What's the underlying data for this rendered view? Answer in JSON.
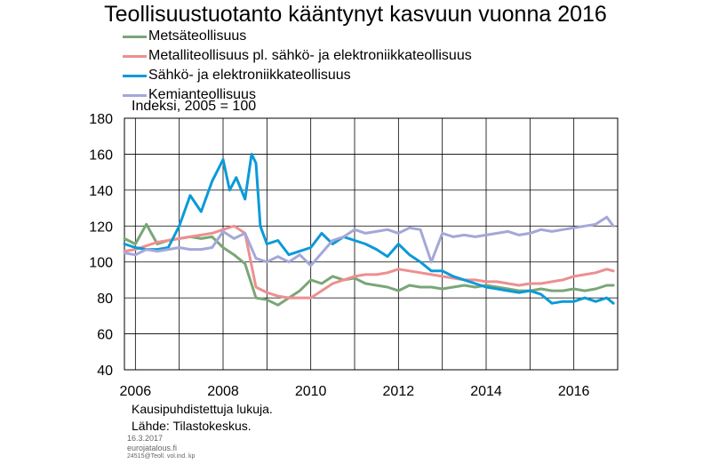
{
  "chart_data": {
    "type": "line",
    "title": "Teollisuustuotanto kääntynyt kasvuun vuonna 2016",
    "ylabel": "Indeksi, 2005 = 100",
    "ylim": [
      40,
      180
    ],
    "yticks": [
      "40",
      "60",
      "80",
      "100",
      "120",
      "140",
      "160",
      "180"
    ],
    "xlim": [
      2005.75,
      2017.0
    ],
    "xticks": [
      {
        "label": "2006",
        "value": 2006
      },
      {
        "label": "2008",
        "value": 2008
      },
      {
        "label": "2010",
        "value": 2010
      },
      {
        "label": "2012",
        "value": 2012
      },
      {
        "label": "2014",
        "value": 2014
      },
      {
        "label": "2016",
        "value": 2016
      }
    ],
    "gridlines_x": [
      2006,
      2007,
      2008,
      2009,
      2010,
      2011,
      2012,
      2013,
      2014,
      2015,
      2016
    ],
    "grid": true,
    "legend_position": "top-left",
    "series": [
      {
        "name": "Metsäteollisuus",
        "color": "#7aa677",
        "x": [
          2005.75,
          2006.0,
          2006.25,
          2006.5,
          2006.75,
          2007.0,
          2007.25,
          2007.5,
          2007.75,
          2008.0,
          2008.25,
          2008.5,
          2008.75,
          2009.0,
          2009.25,
          2009.5,
          2009.75,
          2010.0,
          2010.25,
          2010.5,
          2010.75,
          2011.0,
          2011.25,
          2011.5,
          2011.75,
          2012.0,
          2012.25,
          2012.5,
          2012.75,
          2013.0,
          2013.25,
          2013.5,
          2013.75,
          2014.0,
          2014.25,
          2014.5,
          2014.75,
          2015.0,
          2015.25,
          2015.5,
          2015.75,
          2016.0,
          2016.25,
          2016.5,
          2016.75,
          2016.9
        ],
        "y": [
          113,
          110,
          121,
          110,
          112,
          113,
          114,
          113,
          114,
          108,
          104,
          99,
          80,
          79,
          76,
          80,
          84,
          90,
          88,
          92,
          90,
          91,
          88,
          87,
          86,
          84,
          87,
          86,
          86,
          85,
          86,
          87,
          86,
          87,
          86,
          85,
          84,
          84,
          85,
          84,
          84,
          85,
          84,
          85,
          87,
          87
        ]
      },
      {
        "name": "Metalliteollisuus pl. sähkö- ja elektroniikkateollisuus",
        "color": "#ee8f8f",
        "x": [
          2005.75,
          2006.0,
          2006.25,
          2006.5,
          2006.75,
          2007.0,
          2007.25,
          2007.5,
          2007.75,
          2008.0,
          2008.25,
          2008.5,
          2008.75,
          2009.0,
          2009.25,
          2009.5,
          2009.75,
          2010.0,
          2010.25,
          2010.5,
          2010.75,
          2011.0,
          2011.25,
          2011.5,
          2011.75,
          2012.0,
          2012.25,
          2012.5,
          2012.75,
          2013.0,
          2013.25,
          2013.5,
          2013.75,
          2014.0,
          2014.25,
          2014.5,
          2014.75,
          2015.0,
          2015.25,
          2015.5,
          2015.75,
          2016.0,
          2016.25,
          2016.5,
          2016.75,
          2016.9
        ],
        "y": [
          106,
          107,
          109,
          111,
          112,
          113,
          114,
          115,
          116,
          118,
          120,
          116,
          86,
          83,
          81,
          80,
          80,
          80,
          84,
          88,
          90,
          92,
          93,
          93,
          94,
          96,
          95,
          94,
          93,
          92,
          91,
          90,
          90,
          89,
          89,
          88,
          87,
          88,
          88,
          89,
          90,
          92,
          93,
          94,
          96,
          95
        ]
      },
      {
        "name": "Sähkö- ja elektroniikkateollisuus",
        "color": "#0b9ad8",
        "x": [
          2005.75,
          2006.0,
          2006.25,
          2006.5,
          2006.75,
          2007.0,
          2007.25,
          2007.5,
          2007.75,
          2008.0,
          2008.15,
          2008.3,
          2008.5,
          2008.65,
          2008.75,
          2008.85,
          2009.0,
          2009.25,
          2009.5,
          2009.75,
          2010.0,
          2010.25,
          2010.5,
          2010.75,
          2011.0,
          2011.25,
          2011.5,
          2011.75,
          2012.0,
          2012.25,
          2012.5,
          2012.75,
          2013.0,
          2013.25,
          2013.5,
          2013.75,
          2014.0,
          2014.25,
          2014.5,
          2014.75,
          2015.0,
          2015.25,
          2015.5,
          2015.75,
          2016.0,
          2016.25,
          2016.5,
          2016.75,
          2016.9
        ],
        "y": [
          110,
          108,
          107,
          107,
          108,
          120,
          137,
          128,
          145,
          157,
          140,
          147,
          135,
          160,
          155,
          120,
          110,
          112,
          104,
          106,
          108,
          116,
          110,
          114,
          112,
          110,
          107,
          103,
          110,
          104,
          100,
          95,
          95,
          92,
          90,
          88,
          86,
          85,
          84,
          83,
          84,
          82,
          77,
          78,
          78,
          80,
          78,
          80,
          77
        ]
      },
      {
        "name": "Kemianteollisuus",
        "color": "#a3a8d8",
        "x": [
          2005.75,
          2006.0,
          2006.25,
          2006.5,
          2006.75,
          2007.0,
          2007.25,
          2007.5,
          2007.75,
          2008.0,
          2008.25,
          2008.5,
          2008.75,
          2009.0,
          2009.25,
          2009.5,
          2009.75,
          2010.0,
          2010.25,
          2010.5,
          2010.75,
          2011.0,
          2011.25,
          2011.5,
          2011.75,
          2012.0,
          2012.25,
          2012.5,
          2012.75,
          2013.0,
          2013.25,
          2013.5,
          2013.75,
          2014.0,
          2014.25,
          2014.5,
          2014.75,
          2015.0,
          2015.25,
          2015.5,
          2015.75,
          2016.0,
          2016.25,
          2016.5,
          2016.75,
          2016.9
        ],
        "y": [
          105,
          104,
          107,
          106,
          107,
          108,
          107,
          107,
          108,
          117,
          113,
          116,
          102,
          100,
          103,
          100,
          104,
          98,
          105,
          112,
          114,
          118,
          116,
          117,
          118,
          116,
          119,
          118,
          100,
          116,
          114,
          115,
          114,
          115,
          116,
          117,
          115,
          116,
          118,
          117,
          118,
          119,
          120,
          121,
          125,
          120
        ]
      }
    ]
  },
  "notes": {
    "line1": "Kausipuhdistettuja lukuja.",
    "line2": "Lähde: Tilastokeskus.",
    "date": "16.3.2017",
    "site": "eurojatalous.fi",
    "code": "24515@Teoll. vol.ind. kp"
  }
}
